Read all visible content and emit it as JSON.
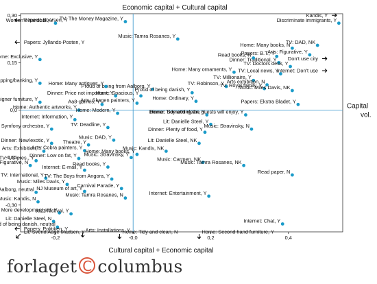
{
  "chart_data": {
    "type": "scatter",
    "title": "",
    "top_label": "Economic capital + Cultural capital",
    "bottom_label": "Cultural capital + Economic capital",
    "right_label_line1": "Capital",
    "right_label_line2": "vol.",
    "xlim": [
      -0.29,
      0.54
    ],
    "ylim": [
      -0.385,
      0.305
    ],
    "xticks": [
      -0.2,
      0.0,
      0.2,
      0.4
    ],
    "xtick_labels": [
      "-0,2",
      "-0,0",
      "0,2",
      "0,4"
    ],
    "yticks": [
      0.3,
      0.15,
      0.0,
      -0.15,
      -0.3
    ],
    "ytick_labels": [
      "0,30",
      "0,15",
      "0,0",
      "-0,15",
      "-0,30"
    ],
    "point_color": "#1a9bc9",
    "axis_color": "#4a9fd0",
    "points": [
      {
        "label": "Kandis, Y",
        "x": 0.505,
        "y": 0.3,
        "arrow": "right"
      },
      {
        "label": "Discriminate immigrants, Y",
        "x": 0.53,
        "y": 0.275
      },
      {
        "label": "TV: DAD, NK",
        "x": 0.475,
        "y": 0.205
      },
      {
        "label": "Arts: Figurative, Y",
        "x": 0.455,
        "y": 0.175
      },
      {
        "label": "Don't use city",
        "x": 0.48,
        "y": 0.163,
        "arrow": "right"
      },
      {
        "label": "Internet: Don't use",
        "x": 0.48,
        "y": 0.125,
        "arrow": "right"
      },
      {
        "label": "Home: Many books, N",
        "x": 0.41,
        "y": 0.196
      },
      {
        "label": "Papers: B.T., Y",
        "x": 0.37,
        "y": 0.17
      },
      {
        "label": "Dinner: Traditional, Y",
        "x": 0.375,
        "y": 0.15
      },
      {
        "label": "TV: Doctors desk, Y",
        "x": 0.405,
        "y": 0.138
      },
      {
        "label": "TV: Local news, Y",
        "x": 0.38,
        "y": 0.115
      },
      {
        "label": "Read books, N",
        "x": 0.31,
        "y": 0.165
      },
      {
        "label": "Music: Tamra Rosanes, Y",
        "x": 0.115,
        "y": 0.225
      },
      {
        "label": "TV: The Money Magazine, Y",
        "x": -0.02,
        "y": 0.28
      },
      {
        "label": "Home: Many ornaments, Y",
        "x": 0.26,
        "y": 0.12
      },
      {
        "label": "TV: Millionaire, Y",
        "x": 0.31,
        "y": 0.094
      },
      {
        "label": "Arts exhibition, N",
        "x": 0.345,
        "y": 0.08
      },
      {
        "label": "TV: Robinson, Y",
        "x": 0.24,
        "y": 0.075
      },
      {
        "label": "TV: Royal family, Y",
        "x": 0.338,
        "y": 0.068
      },
      {
        "label": "Music: Miles Davis, NK",
        "x": 0.41,
        "y": 0.062
      },
      {
        "label": "Papers: Ekstra Bladet, Y",
        "x": 0.425,
        "y": 0.018
      },
      {
        "label": "Proud of being from Aalborg, Y",
        "x": 0.05,
        "y": 0.066
      },
      {
        "label": "Home: Spacious, Y",
        "x": 0.02,
        "y": 0.045
      },
      {
        "label": "Proud of being danish, Y",
        "x": 0.152,
        "y": 0.055
      },
      {
        "label": "Home: Ordinary, Y",
        "x": 0.162,
        "y": 0.028
      },
      {
        "label": "Arts: Skagen painters, Y",
        "x": 0.01,
        "y": 0.022
      },
      {
        "label": "Dinner: Price not important, Y",
        "x": -0.045,
        "y": 0.045
      },
      {
        "label": "Home: Many antiques, Y",
        "x": -0.07,
        "y": 0.075
      },
      {
        "label": "Aa8-games, Y",
        "x": -0.08,
        "y": 0.018
      },
      {
        "label": "Women's handball, Y",
        "x": -0.2,
        "y": 0.275
      },
      {
        "label": "Papers: Boersen, Y",
        "x": -0.285,
        "y": 0.285,
        "arrow": "left"
      },
      {
        "label": "Papers: Jyllands-Posten, Y",
        "x": -0.285,
        "y": 0.215,
        "arrow": "left"
      },
      {
        "label": "Home: Exclusive, Y",
        "x": -0.24,
        "y": 0.16
      },
      {
        "label": "Internet: Shopping/banking, Y",
        "x": -0.24,
        "y": 0.085
      },
      {
        "label": "Home: Designer furniture, Y",
        "x": -0.24,
        "y": 0.025
      },
      {
        "label": "Home: Authentic artworks, Y",
        "x": -0.14,
        "y": 0.0
      },
      {
        "label": "Home: Modern, Y",
        "x": -0.04,
        "y": -0.01
      },
      {
        "label": "Internet: Information, Y",
        "x": -0.15,
        "y": -0.03
      },
      {
        "label": "Symfony orchestra, Y",
        "x": -0.21,
        "y": -0.06
      },
      {
        "label": "TV: Deadline, Y",
        "x": -0.065,
        "y": -0.055
      },
      {
        "label": "Music: DAD, Y",
        "x": -0.05,
        "y": -0.095
      },
      {
        "label": "Home: Tidy and clean, Y",
        "x": 0.19,
        "y": -0.015
      },
      {
        "label": "Dinner: Something the guests will enjoy, Y",
        "x": 0.29,
        "y": -0.015
      },
      {
        "label": "Lit: Danielle Steel, Y",
        "x": 0.2,
        "y": -0.045
      },
      {
        "label": "Dinner: Plenty of food, Y",
        "x": 0.185,
        "y": -0.07
      },
      {
        "label": "Lit: Danielle Steel, NK",
        "x": 0.17,
        "y": -0.105
      },
      {
        "label": "Music: Stravinsky, N",
        "x": 0.305,
        "y": -0.06
      },
      {
        "label": "Music: Stravinsky, Y",
        "x": -0.005,
        "y": -0.15
      },
      {
        "label": "Dinner: New/exotic, Y",
        "x": -0.21,
        "y": -0.105
      },
      {
        "label": "Theatre, Y",
        "x": -0.115,
        "y": -0.11
      },
      {
        "label": "Arts: Exhibition, Y",
        "x": -0.23,
        "y": -0.13
      },
      {
        "label": "Arts: Cobra painters, Y",
        "x": -0.125,
        "y": -0.128
      },
      {
        "label": "Music: Kandis, NK",
        "x": 0.085,
        "y": -0.13
      },
      {
        "label": "Home: Many books, Y",
        "x": 0.01,
        "y": -0.14
      },
      {
        "label": "TV: US pres., Y",
        "x": -0.25,
        "y": -0.16
      },
      {
        "label": "Dinner: Low on fat, Y",
        "x": -0.14,
        "y": -0.153
      },
      {
        "label": "Arts: Figurative, N",
        "x": -0.265,
        "y": -0.175
      },
      {
        "label": "Internet: E-mail, Y",
        "x": -0.125,
        "y": -0.19
      },
      {
        "label": "Read books, Y",
        "x": -0.065,
        "y": -0.18
      },
      {
        "label": "Music: Carmen, NK",
        "x": 0.18,
        "y": -0.165
      },
      {
        "label": "Music: Tamra Rosanes, NK",
        "x": 0.285,
        "y": -0.175
      },
      {
        "label": "Read paper, N",
        "x": 0.41,
        "y": -0.205
      },
      {
        "label": "TV: International, Y",
        "x": -0.225,
        "y": -0.215
      },
      {
        "label": "TV: The Boys from Angora, Y",
        "x": -0.055,
        "y": -0.218
      },
      {
        "label": "Music: Miles Davis, Y",
        "x": -0.17,
        "y": -0.235
      },
      {
        "label": "NJ Museum of art, Y",
        "x": -0.125,
        "y": -0.257
      },
      {
        "label": "Carnival Parade, Y",
        "x": -0.03,
        "y": -0.248
      },
      {
        "label": "Music: Tamra Rosanes, N",
        "x": -0.02,
        "y": -0.278
      },
      {
        "label": "Proud, Aalborg, neutral",
        "x": -0.25,
        "y": -0.26
      },
      {
        "label": "Music: Kandis, N",
        "x": -0.245,
        "y": -0.29
      },
      {
        "label": "Internet: Entertainment, Y",
        "x": 0.195,
        "y": -0.272
      },
      {
        "label": "More development aid, Y",
        "x": -0.19,
        "y": -0.325
      },
      {
        "label": "Jazz festival, Y",
        "x": -0.16,
        "y": -0.328
      },
      {
        "label": "Lit: Danielle Steel, N",
        "x": -0.205,
        "y": -0.352
      },
      {
        "label": "Proud of being danish, neutral",
        "x": -0.195,
        "y": -0.37
      },
      {
        "label": "Papers: Politiken, Y",
        "x": -0.285,
        "y": -0.375,
        "arrow": "left"
      },
      {
        "label": "Arts: Installations, Y",
        "x": -0.13,
        "y": -0.38,
        "arrow": "down"
      },
      {
        "label": "Lit: Svend Aage Madsen, Y",
        "x": -0.285,
        "y": -0.385,
        "arrow": "downleft"
      },
      {
        "label": "Home: Tidy and clean, N",
        "x": -0.035,
        "y": -0.385,
        "arrow": "down"
      },
      {
        "label": "Home: Second hand furniture, Y",
        "x": 0.17,
        "y": -0.385,
        "arrow": "down"
      },
      {
        "label": "Internet: Chat, Y",
        "x": 0.385,
        "y": -0.36
      }
    ]
  },
  "footer": {
    "brand_left": "forlaget",
    "brand_mark": "C",
    "brand_right": "columbus"
  }
}
